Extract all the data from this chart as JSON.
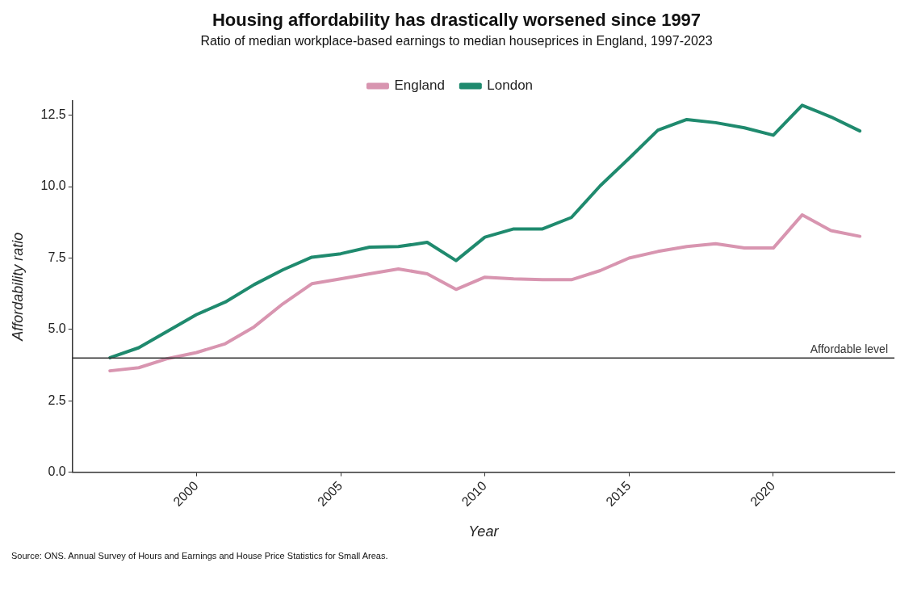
{
  "chart_data": {
    "type": "line",
    "title": "Housing affordability has drastically worsened since 1997",
    "subtitle": "Ratio of median workplace-based earnings to median houseprices in England, 1997-2023",
    "xlabel": "Year",
    "ylabel": "Affordability ratio",
    "x": [
      1997,
      1998,
      1999,
      2000,
      2001,
      2002,
      2003,
      2004,
      2005,
      2006,
      2007,
      2008,
      2009,
      2010,
      2011,
      2012,
      2013,
      2014,
      2015,
      2016,
      2017,
      2018,
      2019,
      2020,
      2021,
      2022,
      2023
    ],
    "series": [
      {
        "name": "England",
        "color": "#d895b0",
        "values": [
          3.55,
          3.66,
          3.98,
          4.19,
          4.5,
          5.09,
          5.9,
          6.6,
          6.77,
          6.95,
          7.12,
          6.95,
          6.4,
          6.83,
          6.77,
          6.74,
          6.74,
          7.06,
          7.5,
          7.73,
          7.9,
          8.0,
          7.85,
          7.85,
          9.01,
          8.46,
          8.26
        ]
      },
      {
        "name": "London",
        "color": "#1f8a6e",
        "values": [
          4.01,
          4.36,
          4.94,
          5.52,
          5.96,
          6.57,
          7.09,
          7.53,
          7.65,
          7.88,
          7.9,
          8.05,
          7.41,
          8.23,
          8.52,
          8.52,
          8.92,
          10.03,
          10.99,
          11.98,
          12.35,
          12.24,
          12.06,
          11.8,
          12.85,
          12.44,
          11.95
        ]
      }
    ],
    "xlim": [
      1995.7,
      2024.2
    ],
    "xticks": [
      2000,
      2005,
      2010,
      2015,
      2020
    ],
    "ylim": [
      0,
      13
    ],
    "yticks": [
      {
        "value": 0,
        "label": "0.0"
      },
      {
        "value": 2.5,
        "label": "2.5"
      },
      {
        "value": 5,
        "label": "5.0"
      },
      {
        "value": 7.5,
        "label": "7.5"
      },
      {
        "value": 10,
        "label": "10.0"
      },
      {
        "value": 12.5,
        "label": "12.5"
      }
    ],
    "ref_lines": [
      {
        "axis": "y",
        "value": 4,
        "label": "Affordable level",
        "color": "#333333"
      }
    ],
    "grid": false,
    "legend": "top",
    "marker": "none",
    "line_style": "solid",
    "annotations": [
      "Source: ONS. Annual Survey of Hours and Earnings and House Price Statistics for Small Areas."
    ]
  }
}
